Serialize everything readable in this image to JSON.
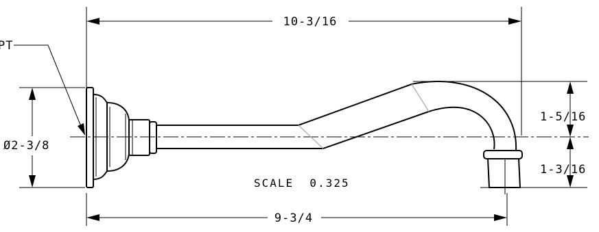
{
  "drawing": {
    "labels": {
      "overall_length": "10-3/16",
      "diameter": "Ø2-3/8",
      "upper_rise": "1-5/16",
      "lower_drop": "1-3/16",
      "reach": "9-3/4",
      "scale": "SCALE  0.325",
      "thread_callout": "PT"
    }
  }
}
